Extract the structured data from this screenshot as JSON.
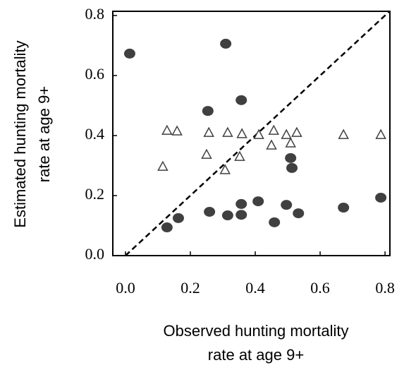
{
  "chart_data": {
    "type": "scatter",
    "xlabel": [
      "Observed hunting mortality",
      "rate at age 9+"
    ],
    "ylabel": [
      "Estimated hunting mortality",
      "rate at age 9+"
    ],
    "xlim": [
      -0.039,
      0.815
    ],
    "ylim": [
      0,
      0.814
    ],
    "xticks": [
      {
        "value": 0,
        "label": "0.0"
      },
      {
        "value": 0.2,
        "label": "0.2"
      },
      {
        "value": 0.4,
        "label": "0.4"
      },
      {
        "value": 0.6,
        "label": "0.6"
      },
      {
        "value": 0.8,
        "label": "0.8"
      }
    ],
    "yticks": [
      {
        "value": 0,
        "label": "0.0"
      },
      {
        "value": 0.2,
        "label": "0.2"
      },
      {
        "value": 0.4,
        "label": "0.4"
      },
      {
        "value": 0.6,
        "label": "0.6"
      },
      {
        "value": 0.8,
        "label": "0.8"
      }
    ],
    "identity_line": true,
    "series": [
      {
        "marker": "circle",
        "color": "#404040",
        "x": [
          0.013,
          0.309,
          0.254,
          0.357,
          0.509,
          0.513,
          0.128,
          0.163,
          0.259,
          0.315,
          0.357,
          0.357,
          0.409,
          0.459,
          0.496,
          0.533,
          0.672,
          0.787
        ],
        "values": [
          0.673,
          0.706,
          0.482,
          0.518,
          0.325,
          0.292,
          0.094,
          0.125,
          0.146,
          0.134,
          0.172,
          0.136,
          0.181,
          0.111,
          0.169,
          0.141,
          0.16,
          0.193
        ]
      },
      {
        "marker": "triangle",
        "color": "#404040",
        "x": [
          0.128,
          0.159,
          0.115,
          0.257,
          0.25,
          0.315,
          0.307,
          0.359,
          0.352,
          0.411,
          0.45,
          0.457,
          0.496,
          0.509,
          0.528,
          0.672,
          0.787
        ],
        "values": [
          0.416,
          0.414,
          0.296,
          0.409,
          0.336,
          0.409,
          0.285,
          0.405,
          0.329,
          0.402,
          0.367,
          0.416,
          0.402,
          0.374,
          0.409,
          0.402,
          0.402
        ]
      }
    ]
  }
}
